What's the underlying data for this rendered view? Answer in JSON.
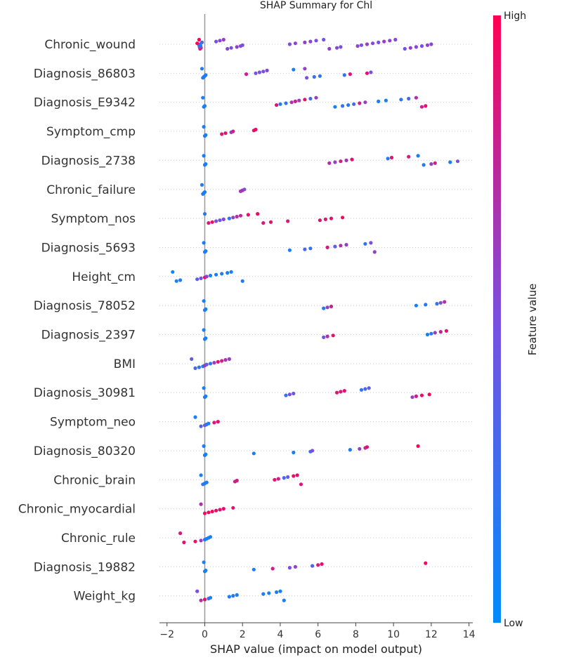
{
  "chart_data": {
    "type": "scatter",
    "title": "SHAP Summary for Chl",
    "xlabel": "SHAP value (impact on model output)",
    "ylabel": "",
    "xlim": [
      -2.4,
      14.2
    ],
    "x_ticks": [
      -2,
      0,
      2,
      4,
      6,
      8,
      10,
      12,
      14
    ],
    "x_tick_labels": [
      "−2",
      "0",
      "2",
      "4",
      "6",
      "8",
      "10",
      "12",
      "14"
    ],
    "grid": false,
    "colorbar": {
      "label": "Feature value",
      "high_label": "High",
      "low_label": "Low"
    },
    "colors": {
      "low": "#008bfb",
      "high": "#ff0052",
      "zero_line": "#999999",
      "row_guide": "#cccccc"
    },
    "features": [
      {
        "name": "Chronic_wound",
        "points": [
          [
            -0.3,
            1.0
          ],
          [
            -0.25,
            0.9
          ],
          [
            -0.2,
            0.8
          ],
          [
            -0.28,
            0.6
          ],
          [
            -0.22,
            0.4
          ],
          [
            -0.3,
            0.2
          ],
          [
            -0.25,
            0.0
          ],
          [
            -0.4,
            1.0
          ],
          [
            -0.15,
            0.3
          ],
          [
            0.6,
            0.5
          ],
          [
            0.8,
            0.55
          ],
          [
            1.0,
            0.6
          ],
          [
            1.2,
            0.55
          ],
          [
            1.4,
            0.5
          ],
          [
            1.7,
            0.6
          ],
          [
            1.9,
            0.5
          ],
          [
            2.0,
            0.5
          ],
          [
            4.5,
            0.5
          ],
          [
            4.8,
            0.55
          ],
          [
            5.3,
            0.6
          ],
          [
            5.6,
            0.55
          ],
          [
            5.9,
            0.5
          ],
          [
            6.3,
            0.45
          ],
          [
            6.6,
            0.6
          ],
          [
            7.0,
            0.55
          ],
          [
            7.2,
            0.5
          ],
          [
            8.1,
            0.55
          ],
          [
            8.3,
            0.5
          ],
          [
            8.6,
            0.6
          ],
          [
            8.9,
            0.55
          ],
          [
            9.2,
            0.5
          ],
          [
            9.5,
            0.6
          ],
          [
            9.8,
            0.55
          ],
          [
            10.1,
            0.55
          ],
          [
            10.6,
            0.5
          ],
          [
            10.9,
            0.6
          ],
          [
            11.2,
            0.55
          ],
          [
            11.5,
            0.5
          ],
          [
            11.8,
            0.6
          ],
          [
            12.0,
            0.55
          ]
        ]
      },
      {
        "name": "Diagnosis_86803",
        "points": [
          [
            -0.15,
            0.1
          ],
          [
            -0.1,
            0.15
          ],
          [
            -0.05,
            0.12
          ],
          [
            0.0,
            0.1
          ],
          [
            0.05,
            0.15
          ],
          [
            2.2,
            0.8
          ],
          [
            2.7,
            0.5
          ],
          [
            2.9,
            0.45
          ],
          [
            3.1,
            0.5
          ],
          [
            3.3,
            0.55
          ],
          [
            4.7,
            0.1
          ],
          [
            5.3,
            0.6
          ],
          [
            5.4,
            0.5
          ],
          [
            5.8,
            0.2
          ],
          [
            6.1,
            0.15
          ],
          [
            7.4,
            0.2
          ],
          [
            7.7,
            0.85
          ],
          [
            8.6,
            0.9
          ],
          [
            8.8,
            0.5
          ]
        ]
      },
      {
        "name": "Diagnosis_E9342",
        "points": [
          [
            -0.1,
            0.1
          ],
          [
            -0.05,
            0.1
          ],
          [
            0.0,
            0.12
          ],
          [
            3.8,
            0.9
          ],
          [
            4.0,
            0.15
          ],
          [
            4.3,
            0.2
          ],
          [
            4.6,
            0.7
          ],
          [
            4.8,
            0.8
          ],
          [
            5.0,
            0.6
          ],
          [
            5.3,
            0.9
          ],
          [
            5.6,
            0.3
          ],
          [
            5.9,
            0.6
          ],
          [
            6.9,
            0.1
          ],
          [
            7.3,
            0.2
          ],
          [
            7.6,
            0.1
          ],
          [
            7.9,
            0.3
          ],
          [
            8.2,
            0.8
          ],
          [
            8.5,
            0.6
          ],
          [
            9.2,
            0.1
          ],
          [
            9.6,
            0.1
          ],
          [
            10.4,
            0.15
          ],
          [
            10.8,
            0.3
          ],
          [
            11.2,
            0.7
          ],
          [
            11.5,
            0.8
          ],
          [
            11.7,
            0.9
          ]
        ]
      },
      {
        "name": "Symptom_cmp",
        "points": [
          [
            -0.05,
            0.1
          ],
          [
            0.0,
            0.1
          ],
          [
            0.05,
            0.1
          ],
          [
            0.9,
            0.85
          ],
          [
            1.1,
            0.9
          ],
          [
            1.4,
            0.6
          ],
          [
            1.5,
            0.8
          ],
          [
            2.6,
            0.9
          ],
          [
            2.7,
            0.95
          ]
        ]
      },
      {
        "name": "Diagnosis_2738",
        "points": [
          [
            -0.05,
            0.1
          ],
          [
            0.0,
            0.1
          ],
          [
            0.05,
            0.1
          ],
          [
            6.6,
            0.7
          ],
          [
            6.9,
            0.6
          ],
          [
            7.2,
            0.8
          ],
          [
            7.5,
            0.65
          ],
          [
            7.8,
            0.9
          ],
          [
            9.7,
            0.1
          ],
          [
            9.9,
            0.9
          ],
          [
            10.8,
            0.85
          ],
          [
            11.3,
            0.1
          ],
          [
            11.6,
            0.15
          ],
          [
            12.0,
            0.6
          ],
          [
            12.2,
            0.8
          ],
          [
            13.0,
            0.1
          ],
          [
            13.4,
            0.5
          ]
        ]
      },
      {
        "name": "Chronic_failure",
        "points": [
          [
            -0.15,
            0.1
          ],
          [
            -0.1,
            0.15
          ],
          [
            -0.05,
            0.1
          ],
          [
            0.0,
            0.1
          ],
          [
            1.9,
            0.6
          ],
          [
            2.0,
            0.75
          ],
          [
            2.1,
            0.5
          ]
        ]
      },
      {
        "name": "Symptom_nos",
        "points": [
          [
            0.0,
            0.15
          ],
          [
            0.2,
            0.85
          ],
          [
            0.4,
            0.9
          ],
          [
            0.6,
            0.5
          ],
          [
            0.8,
            0.4
          ],
          [
            1.0,
            0.55
          ],
          [
            1.3,
            0.2
          ],
          [
            1.5,
            0.6
          ],
          [
            1.7,
            0.7
          ],
          [
            1.9,
            0.75
          ],
          [
            2.3,
            0.9
          ],
          [
            2.8,
            0.95
          ],
          [
            3.1,
            0.85
          ],
          [
            3.5,
            0.9
          ],
          [
            4.4,
            0.85
          ],
          [
            6.1,
            0.9
          ],
          [
            6.4,
            0.85
          ],
          [
            6.7,
            0.9
          ],
          [
            7.3,
            0.95
          ]
        ]
      },
      {
        "name": "Diagnosis_5693",
        "points": [
          [
            -0.05,
            0.1
          ],
          [
            0.0,
            0.1
          ],
          [
            0.05,
            0.1
          ],
          [
            4.5,
            0.1
          ],
          [
            5.3,
            0.3
          ],
          [
            5.6,
            0.2
          ],
          [
            6.5,
            0.85
          ],
          [
            6.9,
            0.4
          ],
          [
            7.2,
            0.7
          ],
          [
            7.5,
            0.6
          ],
          [
            8.5,
            0.2
          ],
          [
            8.8,
            0.5
          ],
          [
            9.0,
            0.6
          ]
        ]
      },
      {
        "name": "Height_cm",
        "points": [
          [
            -1.7,
            0.05
          ],
          [
            -1.5,
            0.1
          ],
          [
            -1.3,
            0.15
          ],
          [
            -0.4,
            0.35
          ],
          [
            -0.2,
            0.5
          ],
          [
            0.0,
            0.9
          ],
          [
            0.1,
            0.6
          ],
          [
            0.3,
            0.05
          ],
          [
            0.6,
            0.1
          ],
          [
            0.9,
            0.1
          ],
          [
            1.2,
            0.1
          ],
          [
            1.4,
            0.1
          ],
          [
            2.0,
            0.1
          ]
        ]
      },
      {
        "name": "Diagnosis_78052",
        "points": [
          [
            -0.05,
            0.1
          ],
          [
            0.0,
            0.1
          ],
          [
            0.05,
            0.1
          ],
          [
            6.3,
            0.15
          ],
          [
            6.5,
            0.6
          ],
          [
            6.7,
            0.8
          ],
          [
            11.2,
            0.1
          ],
          [
            11.7,
            0.15
          ],
          [
            12.3,
            0.2
          ],
          [
            12.5,
            0.55
          ],
          [
            12.7,
            0.7
          ]
        ]
      },
      {
        "name": "Diagnosis_2397",
        "points": [
          [
            -0.05,
            0.1
          ],
          [
            0.0,
            0.1
          ],
          [
            0.05,
            0.1
          ],
          [
            6.3,
            0.45
          ],
          [
            6.5,
            0.7
          ],
          [
            6.8,
            0.9
          ],
          [
            11.8,
            0.1
          ],
          [
            12.0,
            0.2
          ],
          [
            12.2,
            0.6
          ],
          [
            12.5,
            0.8
          ],
          [
            12.8,
            0.9
          ]
        ]
      },
      {
        "name": "BMI",
        "points": [
          [
            -0.7,
            0.4
          ],
          [
            -0.5,
            0.3
          ],
          [
            -0.3,
            0.2
          ],
          [
            -0.1,
            0.1
          ],
          [
            0.0,
            0.7
          ],
          [
            0.1,
            0.4
          ],
          [
            0.3,
            0.2
          ],
          [
            0.5,
            0.6
          ],
          [
            0.7,
            0.9
          ],
          [
            0.9,
            0.8
          ],
          [
            1.1,
            0.7
          ],
          [
            1.3,
            0.6
          ]
        ]
      },
      {
        "name": "Diagnosis_30981",
        "points": [
          [
            -0.05,
            0.1
          ],
          [
            0.0,
            0.1
          ],
          [
            0.05,
            0.1
          ],
          [
            4.3,
            0.2
          ],
          [
            4.5,
            0.5
          ],
          [
            4.7,
            0.4
          ],
          [
            7.0,
            0.9
          ],
          [
            7.2,
            0.85
          ],
          [
            7.4,
            0.9
          ],
          [
            8.3,
            0.2
          ],
          [
            8.5,
            0.3
          ],
          [
            8.7,
            0.4
          ],
          [
            11.0,
            0.6
          ],
          [
            11.2,
            0.8
          ],
          [
            11.5,
            0.9
          ],
          [
            11.9,
            0.95
          ]
        ]
      },
      {
        "name": "Symptom_neo",
        "points": [
          [
            -0.5,
            0.1
          ],
          [
            -0.2,
            0.3
          ],
          [
            0.0,
            0.5
          ],
          [
            0.1,
            0.2
          ],
          [
            0.2,
            0.1
          ],
          [
            0.5,
            0.85
          ],
          [
            0.7,
            0.9
          ]
        ]
      },
      {
        "name": "Diagnosis_80320",
        "points": [
          [
            -0.05,
            0.1
          ],
          [
            0.0,
            0.1
          ],
          [
            0.05,
            0.1
          ],
          [
            2.6,
            0.1
          ],
          [
            4.7,
            0.1
          ],
          [
            5.6,
            0.3
          ],
          [
            5.7,
            0.5
          ],
          [
            7.7,
            0.15
          ],
          [
            8.2,
            0.6
          ],
          [
            8.5,
            0.7
          ],
          [
            8.6,
            0.9
          ],
          [
            11.3,
            0.95
          ]
        ]
      },
      {
        "name": "Chronic_brain",
        "points": [
          [
            -0.2,
            0.1
          ],
          [
            -0.1,
            0.2
          ],
          [
            0.0,
            0.1
          ],
          [
            0.1,
            0.1
          ],
          [
            1.6,
            0.8
          ],
          [
            1.7,
            0.85
          ],
          [
            3.7,
            0.9
          ],
          [
            3.9,
            0.8
          ],
          [
            4.2,
            0.3
          ],
          [
            4.4,
            0.4
          ],
          [
            4.7,
            0.9
          ],
          [
            4.9,
            0.95
          ],
          [
            5.1,
            0.85
          ]
        ]
      },
      {
        "name": "Chronic_myocardial",
        "points": [
          [
            -0.2,
            0.7
          ],
          [
            0.0,
            0.9
          ],
          [
            0.2,
            0.95
          ],
          [
            0.4,
            0.95
          ],
          [
            0.6,
            0.95
          ],
          [
            0.8,
            0.9
          ],
          [
            1.0,
            0.9
          ],
          [
            1.5,
            0.9
          ]
        ]
      },
      {
        "name": "Chronic_rule",
        "points": [
          [
            -1.3,
            0.85
          ],
          [
            -1.1,
            0.9
          ],
          [
            -0.5,
            0.9
          ],
          [
            -0.2,
            0.6
          ],
          [
            0.0,
            0.1
          ],
          [
            0.1,
            0.1
          ],
          [
            0.2,
            0.1
          ],
          [
            0.3,
            0.1
          ]
        ]
      },
      {
        "name": "Diagnosis_19882",
        "points": [
          [
            -0.05,
            0.1
          ],
          [
            0.0,
            0.1
          ],
          [
            0.05,
            0.1
          ],
          [
            2.6,
            0.1
          ],
          [
            3.6,
            0.8
          ],
          [
            4.5,
            0.5
          ],
          [
            4.8,
            0.6
          ],
          [
            5.7,
            0.3
          ],
          [
            6.0,
            0.85
          ],
          [
            6.2,
            0.9
          ],
          [
            11.7,
            0.95
          ]
        ]
      },
      {
        "name": "Weight_kg",
        "points": [
          [
            -0.4,
            0.5
          ],
          [
            -0.2,
            0.7
          ],
          [
            0.0,
            0.9
          ],
          [
            0.2,
            0.3
          ],
          [
            0.3,
            0.1
          ],
          [
            1.3,
            0.1
          ],
          [
            1.5,
            0.15
          ],
          [
            1.7,
            0.1
          ],
          [
            3.1,
            0.1
          ],
          [
            3.4,
            0.1
          ],
          [
            3.8,
            0.15
          ],
          [
            4.0,
            0.1
          ],
          [
            4.2,
            0.1
          ]
        ]
      }
    ]
  }
}
